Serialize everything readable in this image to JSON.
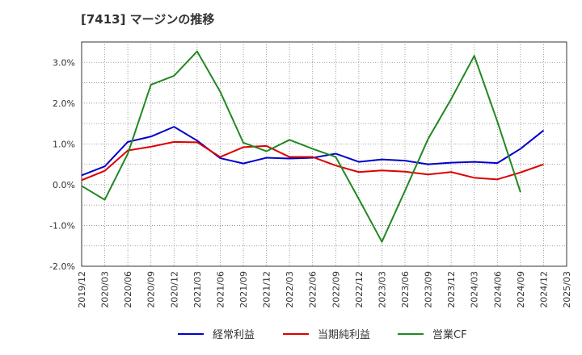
{
  "chart_data": {
    "type": "line",
    "title": "[7413]  マージンの推移",
    "xlabel": "",
    "ylabel": "",
    "x": [
      "2019/12",
      "2020/03",
      "2020/06",
      "2020/09",
      "2020/12",
      "2021/03",
      "2021/06",
      "2021/09",
      "2021/12",
      "2022/03",
      "2022/06",
      "2022/09",
      "2022/12",
      "2023/03",
      "2023/06",
      "2023/09",
      "2023/12",
      "2024/03",
      "2024/06",
      "2024/09",
      "2024/12",
      "2025/03"
    ],
    "yticks": [
      "3.0%",
      "2.0%",
      "1.0%",
      "0.0%",
      "-1.0%",
      "-2.0%"
    ],
    "ytick_values": [
      3.0,
      2.0,
      1.0,
      0.0,
      -1.0,
      -2.0
    ],
    "ylim": [
      -2.0,
      3.5
    ],
    "grid": true,
    "legend_position": "bottom",
    "series": [
      {
        "name": "経常利益",
        "color": "#0000cc",
        "values": [
          0.23,
          0.45,
          1.05,
          1.18,
          1.42,
          1.08,
          0.65,
          0.52,
          0.66,
          0.64,
          0.66,
          0.76,
          0.56,
          0.62,
          0.59,
          0.5,
          0.54,
          0.56,
          0.53,
          0.88,
          1.33,
          null
        ]
      },
      {
        "name": "当期純利益",
        "color": "#dd0000",
        "values": [
          0.11,
          0.34,
          0.84,
          0.93,
          1.05,
          1.04,
          0.68,
          0.92,
          0.95,
          0.68,
          0.68,
          0.47,
          0.31,
          0.35,
          0.32,
          0.25,
          0.31,
          0.17,
          0.13,
          0.3,
          0.5,
          null
        ]
      },
      {
        "name": "営業CF",
        "color": "#228822",
        "values": [
          -0.03,
          -0.37,
          0.76,
          2.45,
          2.67,
          3.27,
          2.28,
          1.03,
          0.82,
          1.1,
          0.88,
          0.68,
          -0.35,
          -1.4,
          -0.15,
          1.12,
          2.1,
          3.16,
          1.55,
          -0.18,
          null,
          null
        ]
      }
    ]
  }
}
